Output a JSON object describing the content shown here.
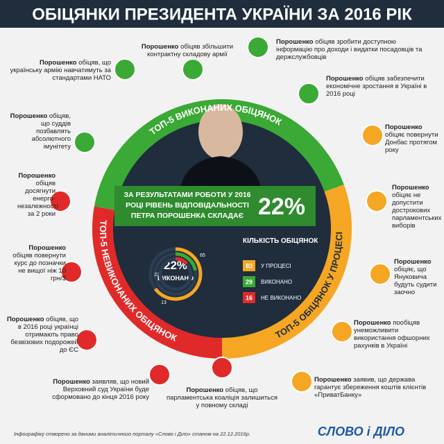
{
  "title": "ОБІЦЯНКИ ПРЕЗИДЕНТА УКРАЇНИ ЗА 2016 РІК",
  "ring_labels": {
    "done": "ТОП-5 ВИКОНАНИХ ОБІЦЯНОК",
    "in_progress": "ТОП-5 ОБІЦЯНОК У ПРОЦЕСІ",
    "not_done": "ТОП-5 НЕВИКОНАНИХ ОБІЦЯНОК"
  },
  "headline": {
    "text": "ЗА РЕЗУЛЬТАТАМИ РОБОТИ У 2016 РОЦІ РІВЕНЬ ВІДПОВІДАЛЬНОСТІ ПЕТРА ПОРОШЕНКА СКЛАДАЄ",
    "value": "22%"
  },
  "donut": {
    "center_value": "22%",
    "center_label": "ВИКОНАНО",
    "legend_title": "КІЛЬКІСТЬ ОБІЦЯНОК",
    "segments": [
      {
        "name": "У ПРОЦЕСІ",
        "count": 83,
        "percent": 65,
        "color": "#f5a623"
      },
      {
        "name": "ВИКОНАНО",
        "count": 29,
        "percent": 22,
        "color": "#3aa935"
      },
      {
        "name": "НЕ ВИКОНАНО",
        "count": 16,
        "percent": 13,
        "color": "#e02a2a"
      }
    ]
  },
  "promises": [
    {
      "name": "Порошенко",
      "text": "обіцяв збільшити контрактну складову армії",
      "color": "#3aa935"
    },
    {
      "name": "Порошенко",
      "text": "обіцяв зробити доступною інформацію про доходи і видатки посадовців та держслужбовців",
      "color": "#3aa935"
    },
    {
      "name": "Порошенко",
      "text": "обіцяв забезпечити економічне зростання в Україні в 2016 році",
      "color": "#3aa935"
    },
    {
      "name": "Порошенко",
      "text": "обіцяє повернути Донбас протягом року",
      "color": "#f5a623"
    },
    {
      "name": "Порошенко",
      "text": "обіцяє не допустити дострокових парламентських виборів",
      "color": "#f5a623"
    },
    {
      "name": "Порошенко",
      "text": "обіцяє, що Януковича будуть судити заочно",
      "color": "#f5a623"
    },
    {
      "name": "Порошенко",
      "text": "пообіцяв унеможливити використання офшорних рахунків в Україні",
      "color": "#f5a623"
    },
    {
      "name": "Порошенко",
      "text": "заявив, що держава гарантує збереження коштів клієнтів «ПриватБанку»",
      "color": "#f5a623"
    },
    {
      "name": "Порошенко",
      "text": "обіцяв, що парламентська коаліція залишиться у повному складі",
      "color": "#e02a2a"
    },
    {
      "name": "Порошенко",
      "text": "заявляв, що новий Верховний суд України буде сформовано до кінця 2016 року",
      "color": "#e02a2a"
    },
    {
      "name": "Порошенко",
      "text": "обіцяв, що в 2016 році українці отримають право безвізових подорожей до ЄС",
      "color": "#e02a2a"
    },
    {
      "name": "Порошенко",
      "text": "обіцяв повернути курс до позначки не вищої ніж 10 грн/$",
      "color": "#e02a2a"
    },
    {
      "name": "Порошенко",
      "text": "обіцяв досягнути енерго-незалежності за 2 роки",
      "color": "#e02a2a"
    },
    {
      "name": "Порошенко",
      "text": "обіцяв, що суддів позбавлять абсолютного імунітету",
      "color": "#3aa935"
    },
    {
      "name": "Порошенко",
      "text": "обіцяв, що українську армію навчатимуть за стандартами НАТО",
      "color": "#3aa935"
    }
  ],
  "footer": {
    "note": "Інфографіку створено за даними аналітичного порталу «Слово і Діло» станом на 22.12.2016р.",
    "logo": "СЛОВО і ДІЛО"
  }
}
